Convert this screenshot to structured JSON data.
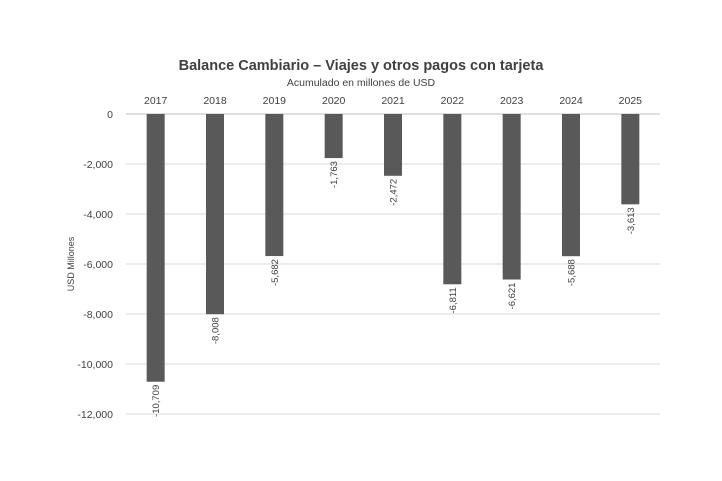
{
  "chart_data": {
    "type": "bar",
    "title": "Balance Cambiario – Viajes y otros pagos con tarjeta",
    "subtitle": "Acumulado en millones de USD",
    "ylabel": "USD Millones",
    "xlabel": "",
    "categories": [
      "2017",
      "2018",
      "2019",
      "2020",
      "2021",
      "2022",
      "2023",
      "2024",
      "2025"
    ],
    "values": [
      -10709,
      -8008,
      -5682,
      -1763,
      -2472,
      -6811,
      -6621,
      -5688,
      -3613
    ],
    "data_labels": [
      "-10,709",
      "-8,008",
      "-5,682",
      "-1,763",
      "-2,472",
      "-6,811",
      "-6,621",
      "-5,688",
      "-3,613"
    ],
    "ylim": [
      -12000,
      0
    ],
    "yticks": [
      0,
      -2000,
      -4000,
      -6000,
      -8000,
      -10000,
      -12000
    ],
    "ytick_labels": [
      "0",
      "-2,000",
      "-4,000",
      "-6,000",
      "-8,000",
      "-10,000",
      "-12,000"
    ],
    "category_axis_position": "top",
    "grid": true,
    "legend": "none",
    "bar_color": "#595959"
  }
}
